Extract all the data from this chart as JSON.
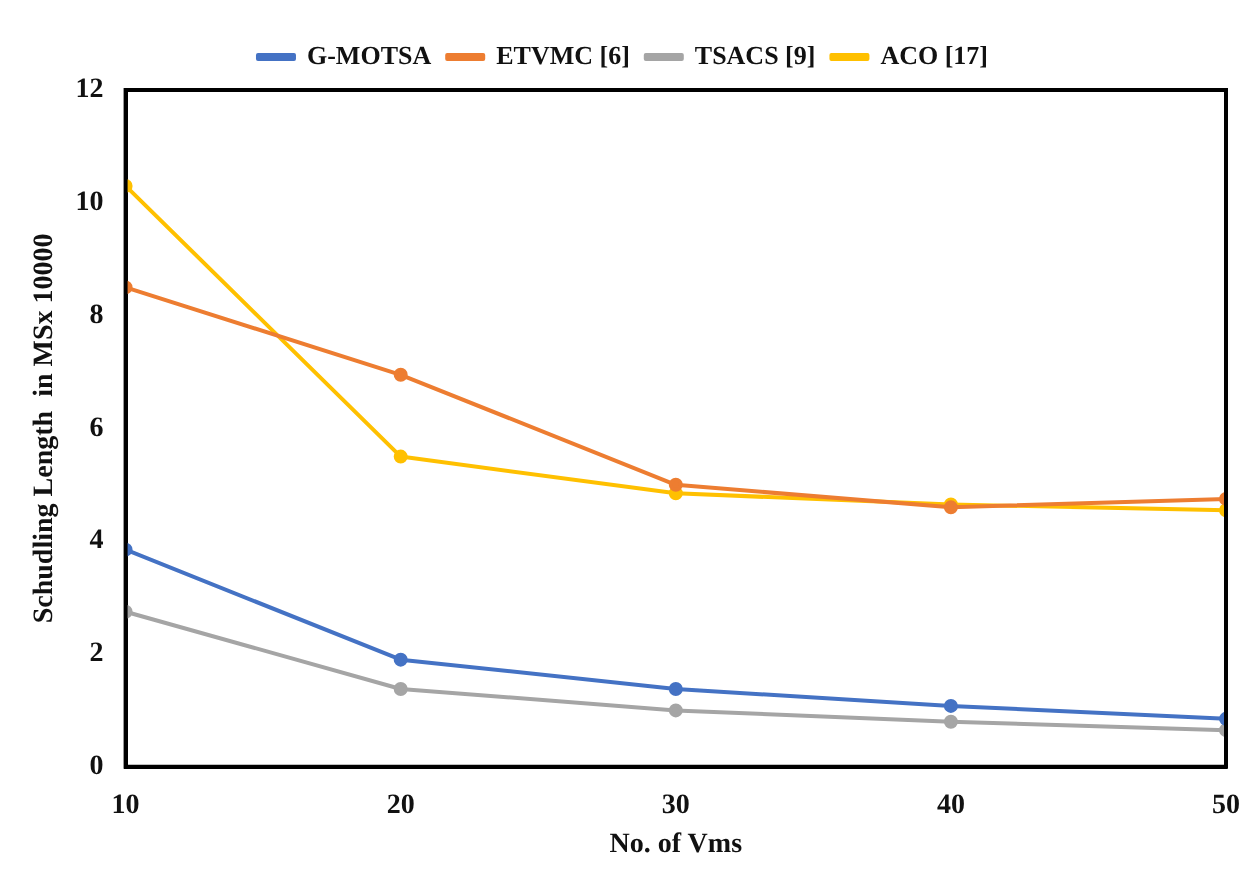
{
  "chart_data": {
    "type": "line",
    "xlabel": "No. of Vms",
    "ylabel": "Schudling Length  in MSx 10000",
    "x": [
      10,
      20,
      30,
      40,
      50
    ],
    "xlim": [
      10,
      50
    ],
    "xticks": [
      10,
      20,
      30,
      40,
      50
    ],
    "ylim": [
      0,
      12
    ],
    "yticks": [
      0,
      2,
      4,
      6,
      8,
      10,
      12
    ],
    "grid": false,
    "legend": "top",
    "marker": "circle",
    "line_style": "solid",
    "series": [
      {
        "name": "G-MOTSA",
        "color": "#4472c4",
        "values": [
          3.85,
          1.9,
          1.38,
          1.08,
          0.85
        ]
      },
      {
        "name": "ETVMC [6]",
        "color": "#ed7d31",
        "values": [
          8.5,
          6.95,
          5.0,
          4.6,
          4.75
        ]
      },
      {
        "name": "TSACS [9]",
        "color": "#a5a5a5",
        "values": [
          2.75,
          1.38,
          1.0,
          0.8,
          0.65
        ]
      },
      {
        "name": "ACO [17]",
        "color": "#ffc000",
        "values": [
          10.3,
          5.5,
          4.85,
          4.65,
          4.55
        ]
      }
    ]
  }
}
